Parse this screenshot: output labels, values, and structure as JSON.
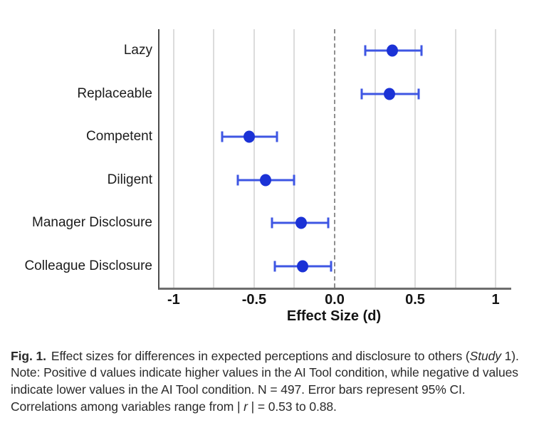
{
  "caption": {
    "label": "Fig. 1.",
    "part1": "Effect sizes for differences in expected perceptions and disclosure to others (",
    "study_italic": "Study",
    "part2": " 1). Note: Positive d values indicate higher values in the AI Tool condition, while negative d values indicate lower values in the AI Tool condition. N = 497. Error bars represent 95% CI. Correlations among variables range from | ",
    "r_italic": "r",
    "part3": " | = 0.53 to 0.88."
  },
  "chart_data": {
    "type": "scatter",
    "subtype": "forest_plot_dots_with_95ci",
    "title": "",
    "xlabel": "Effect Size (d)",
    "ylabel": "",
    "xlim": [
      -1.088,
      1.097
    ],
    "grid": "vertical gridlines every 0.25",
    "gridline_values": [
      -1,
      -0.75,
      -0.5,
      -0.25,
      0.25,
      0.5,
      0.75,
      1
    ],
    "zero_line": {
      "value": 0.0,
      "style": "dashed"
    },
    "x_ticks": [
      {
        "value": -1,
        "label": "-1"
      },
      {
        "value": -0.5,
        "label": "-0.5"
      },
      {
        "value": 0,
        "label": "0.0"
      },
      {
        "value": 0.5,
        "label": "0.5"
      },
      {
        "value": 1,
        "label": "1"
      }
    ],
    "points": [
      {
        "label": "Lazy",
        "d": 0.36,
        "ci95": [
          0.19,
          0.54
        ]
      },
      {
        "label": "Replaceable",
        "d": 0.34,
        "ci95": [
          0.17,
          0.52
        ]
      },
      {
        "label": "Competent",
        "d": -0.53,
        "ci95": [
          -0.7,
          -0.36
        ]
      },
      {
        "label": "Diligent",
        "d": -0.43,
        "ci95": [
          -0.6,
          -0.25
        ]
      },
      {
        "label": "Manager Disclosure",
        "d": -0.21,
        "ci95": [
          -0.39,
          -0.04
        ]
      },
      {
        "label": "Colleague Disclosure",
        "d": -0.2,
        "ci95": [
          -0.37,
          -0.02
        ]
      }
    ],
    "colors": {
      "point": "#1b32d6",
      "error_bar": "#3e56e3",
      "gridline": "#dcdcdc",
      "zero_line": "#8f8f8f",
      "axis": "#6e6e6e",
      "text": "#141414"
    }
  }
}
